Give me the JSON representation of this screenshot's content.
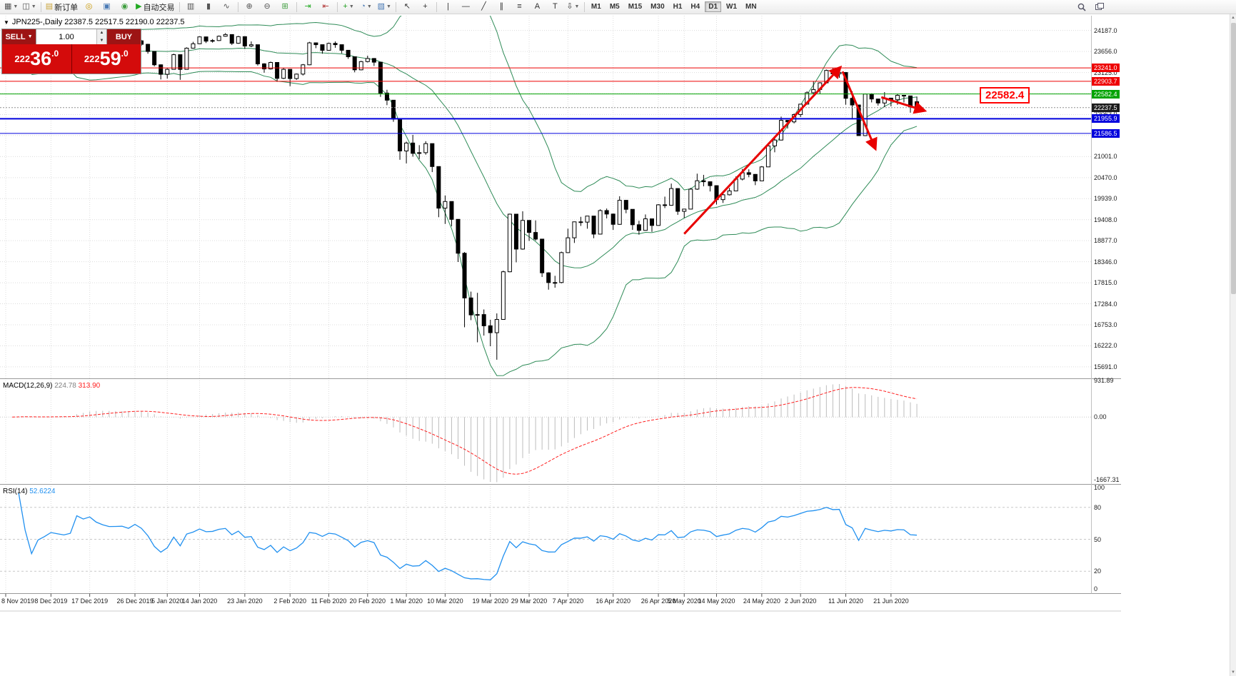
{
  "window": {
    "toolbar_bg": "#f0f0f0",
    "chart_bg": "#ffffff"
  },
  "toolbar": {
    "items": [
      {
        "name": "new-chart-button",
        "glyph": "▦",
        "color": "#555555",
        "dd": true
      },
      {
        "name": "profiles-button",
        "glyph": "◫",
        "color": "#555555",
        "dd": true
      },
      {
        "sep": true
      },
      {
        "name": "new-order-button",
        "glyph": "▤",
        "color": "#caa53d",
        "label": "新订单"
      },
      {
        "name": "market-watch-button",
        "glyph": "◎",
        "color": "#c99700"
      },
      {
        "name": "navigator-button",
        "glyph": "▣",
        "color": "#4a7ab5"
      },
      {
        "name": "strategy-tester-button",
        "glyph": "◉",
        "color": "#3f9e3f"
      },
      {
        "name": "autotrading-button",
        "glyph": "▶",
        "color": "#22aa22",
        "label": "自动交易"
      },
      {
        "sep": true
      },
      {
        "name": "bar-chart-button",
        "glyph": "▥",
        "color": "#555555"
      },
      {
        "name": "candlestick-chart-button",
        "glyph": "▮",
        "color": "#555555"
      },
      {
        "name": "line-chart-button",
        "glyph": "∿",
        "color": "#555555"
      },
      {
        "sep": true
      },
      {
        "name": "zoom-in-button",
        "glyph": "⊕",
        "color": "#555555"
      },
      {
        "name": "zoom-out-button",
        "glyph": "⊖",
        "color": "#555555"
      },
      {
        "name": "tile-windows-button",
        "glyph": "⊞",
        "color": "#3f9e3f"
      },
      {
        "sep": true
      },
      {
        "name": "auto-scroll-button",
        "glyph": "⇥",
        "color": "#22aa22"
      },
      {
        "name": "chart-shift-button",
        "glyph": "⇤",
        "color": "#b03030"
      },
      {
        "sep": true
      },
      {
        "name": "indicators-button",
        "glyph": "+",
        "color": "#1f9e1f",
        "dd": true
      },
      {
        "name": "periods-button",
        "glyph": "◔",
        "color": "#4a7ab5",
        "dd": true
      },
      {
        "name": "templates-button",
        "glyph": "▧",
        "color": "#4a7ab5",
        "dd": true
      },
      {
        "sep": true
      },
      {
        "name": "cursor-button",
        "glyph": "↖",
        "color": "#333333"
      },
      {
        "name": "crosshair-button",
        "glyph": "+",
        "color": "#333333"
      },
      {
        "sep": true
      },
      {
        "name": "vertical-line-button",
        "glyph": "|",
        "color": "#333333"
      },
      {
        "name": "horizontal-line-button",
        "glyph": "—",
        "color": "#333333"
      },
      {
        "name": "trendline-button",
        "glyph": "╱",
        "color": "#333333"
      },
      {
        "name": "equidistant-channel-button",
        "glyph": "∥",
        "color": "#333333"
      },
      {
        "name": "fibonacci-button",
        "glyph": "≡",
        "color": "#333333"
      },
      {
        "name": "text-button",
        "glyph": "A",
        "color": "#333333"
      },
      {
        "name": "text-label-button",
        "glyph": "T",
        "color": "#333333"
      },
      {
        "name": "arrows-button",
        "glyph": "⇩",
        "color": "#333333",
        "dd": true
      },
      {
        "sep": true
      }
    ],
    "timeframes": [
      "M1",
      "M5",
      "M15",
      "M30",
      "H1",
      "H4",
      "D1",
      "W1",
      "MN"
    ],
    "active_timeframe": "D1",
    "right_items": [
      {
        "name": "search-button",
        "icon": "search"
      },
      {
        "name": "new-window-button",
        "icon": "windows"
      }
    ]
  },
  "chart": {
    "title_line": "JPN225-,Daily 22387.5 22517.5 22190.0 22237.5",
    "symbol": "JPN225-",
    "period": "Daily"
  },
  "trade_panel": {
    "sell_label": "SELL",
    "buy_label": "BUY",
    "volume": "1.00",
    "sell_price": {
      "full": "22236.0",
      "head": "222",
      "big": "36",
      "sup": ".0"
    },
    "buy_price": {
      "full": "22259.0",
      "head": "222",
      "big": "59",
      "sup": ".0"
    },
    "header_bg": "#9d1414",
    "price_bg": "#d40b0b"
  },
  "chart_data": {
    "type": "candlestick",
    "symbol": "JPN225-",
    "period": "Daily",
    "ohlc_line": {
      "open": "22387.5",
      "high": "22517.5",
      "low": "22190.0",
      "close": "22237.5"
    },
    "price_axis": {
      "min": 15400,
      "max": 24560,
      "tick_values": [
        24187,
        23656,
        23125,
        22594,
        22063,
        21532,
        21001,
        20470,
        19939,
        19408,
        18877,
        18346,
        17815,
        17284,
        16753,
        16222,
        15691
      ],
      "tick_labels": [
        "24187.0",
        "23656.0",
        "23125.0",
        "22594.0",
        "22063.0",
        "21532.0",
        "21001.0",
        "20470.0",
        "19939.0",
        "19408.0",
        "18877.0",
        "18346.0",
        "17815.0",
        "17284.0",
        "16753.0",
        "16222.0",
        "15691.0"
      ]
    },
    "date_ticks": [
      [
        0,
        "8 Nov 2019"
      ],
      [
        7,
        "8 Dec 2019"
      ],
      [
        13,
        "17 Dec 2019"
      ],
      [
        20,
        "26 Dec 2019"
      ],
      [
        25,
        "5 Jan 2020"
      ],
      [
        30,
        "14 Jan 2020"
      ],
      [
        37,
        "23 Jan 2020"
      ],
      [
        44,
        "2 Feb 2020"
      ],
      [
        50,
        "11 Feb 2020"
      ],
      [
        56,
        "20 Feb 2020"
      ],
      [
        62,
        "1 Mar 2020"
      ],
      [
        68,
        "10 Mar 2020"
      ],
      [
        75,
        "19 Mar 2020"
      ],
      [
        81,
        "29 Mar 2020"
      ],
      [
        87,
        "7 Apr 2020"
      ],
      [
        94,
        "16 Apr 2020"
      ],
      [
        101,
        "26 Apr 2020"
      ],
      [
        105,
        "5 May 2020"
      ],
      [
        110,
        "14 May 2020"
      ],
      [
        117,
        "24 May 2020"
      ],
      [
        123,
        "2 Jun 2020"
      ],
      [
        130,
        "11 Jun 2020"
      ],
      [
        137,
        "21 Jun 2020"
      ]
    ],
    "candles": [
      [
        23290,
        23370,
        23240,
        23310
      ],
      [
        23310,
        23360,
        23250,
        23294
      ],
      [
        23294,
        23560,
        23285,
        23530
      ],
      [
        23530,
        23540,
        23330,
        23380
      ],
      [
        23380,
        23390,
        23100,
        23135
      ],
      [
        23135,
        23330,
        23120,
        23300
      ],
      [
        23300,
        23390,
        23270,
        23354
      ],
      [
        23354,
        23460,
        23340,
        23430
      ],
      [
        23430,
        23450,
        23360,
        23410
      ],
      [
        23410,
        23440,
        23350,
        23391
      ],
      [
        23391,
        23480,
        23370,
        23424
      ],
      [
        23424,
        24050,
        23420,
        24023
      ],
      [
        24023,
        24040,
        23900,
        23952
      ],
      [
        23952,
        24091,
        23930,
        24066
      ],
      [
        24066,
        24070,
        23900,
        23934
      ],
      [
        23934,
        23950,
        23820,
        23864
      ],
      [
        23864,
        23920,
        23780,
        23817
      ],
      [
        23817,
        23860,
        23780,
        23821
      ],
      [
        23821,
        23870,
        23800,
        23830
      ],
      [
        23830,
        23840,
        23750,
        23783
      ],
      [
        23783,
        23940,
        23770,
        23925
      ],
      [
        23925,
        23950,
        23800,
        23838
      ],
      [
        23838,
        23850,
        23600,
        23657
      ],
      [
        23657,
        23660,
        23280,
        23320
      ],
      [
        23320,
        23330,
        22950,
        23080
      ],
      [
        23080,
        23230,
        22970,
        23205
      ],
      [
        23205,
        23600,
        23200,
        23576
      ],
      [
        23576,
        23580,
        22940,
        23204
      ],
      [
        23204,
        23760,
        23200,
        23740
      ],
      [
        23740,
        23900,
        23730,
        23851
      ],
      [
        23851,
        24040,
        23840,
        24025
      ],
      [
        24025,
        24030,
        23870,
        23917
      ],
      [
        23917,
        23970,
        23880,
        23933
      ],
      [
        23933,
        24060,
        23920,
        24041
      ],
      [
        24041,
        24120,
        24030,
        24084
      ],
      [
        24084,
        24090,
        23820,
        23864
      ],
      [
        23864,
        24050,
        23850,
        24031
      ],
      [
        24031,
        24040,
        23720,
        23795
      ],
      [
        23795,
        23910,
        23770,
        23827
      ],
      [
        23827,
        23830,
        23300,
        23344
      ],
      [
        23344,
        23360,
        23120,
        23216
      ],
      [
        23216,
        23400,
        23200,
        23379
      ],
      [
        23379,
        23380,
        22890,
        22978
      ],
      [
        22978,
        23240,
        22960,
        23205
      ],
      [
        23205,
        23210,
        22780,
        22972
      ],
      [
        22972,
        23100,
        22940,
        23085
      ],
      [
        23085,
        23340,
        23050,
        23320
      ],
      [
        23320,
        23900,
        23310,
        23874
      ],
      [
        23874,
        23880,
        23740,
        23828
      ],
      [
        23828,
        23830,
        23600,
        23686
      ],
      [
        23686,
        23880,
        23680,
        23861
      ],
      [
        23861,
        23910,
        23750,
        23828
      ],
      [
        23828,
        23830,
        23610,
        23687
      ],
      [
        23687,
        23690,
        23470,
        23523
      ],
      [
        23523,
        23530,
        23130,
        23193
      ],
      [
        23193,
        23420,
        23180,
        23401
      ],
      [
        23401,
        23550,
        23380,
        23479
      ],
      [
        23479,
        23490,
        23290,
        23386
      ],
      [
        23386,
        23390,
        22510,
        22605
      ],
      [
        22605,
        22690,
        22300,
        22426
      ],
      [
        22426,
        22430,
        21880,
        21948
      ],
      [
        21948,
        21950,
        20920,
        21143
      ],
      [
        21143,
        21380,
        20830,
        21344
      ],
      [
        21344,
        21550,
        21000,
        21083
      ],
      [
        21083,
        21290,
        20940,
        21100
      ],
      [
        21100,
        21390,
        21050,
        21329
      ],
      [
        21329,
        21330,
        20610,
        20750
      ],
      [
        20750,
        20750,
        19470,
        19699
      ],
      [
        19699,
        20020,
        19300,
        19867
      ],
      [
        19867,
        19870,
        19240,
        19416
      ],
      [
        19416,
        19420,
        18340,
        18560
      ],
      [
        18560,
        18590,
        16690,
        17431
      ],
      [
        17431,
        17590,
        16870,
        17002
      ],
      [
        17002,
        17560,
        16310,
        17011
      ],
      [
        17011,
        17140,
        16480,
        16727
      ],
      [
        16727,
        16880,
        16210,
        16553
      ],
      [
        16553,
        17040,
        15870,
        16888
      ],
      [
        16888,
        18120,
        16880,
        18092
      ],
      [
        18092,
        19560,
        18080,
        19547
      ],
      [
        19547,
        19550,
        18330,
        18665
      ],
      [
        18665,
        19620,
        18650,
        19389
      ],
      [
        19389,
        19390,
        18870,
        19085
      ],
      [
        19085,
        19390,
        18880,
        18917
      ],
      [
        18917,
        18920,
        17960,
        18065
      ],
      [
        18065,
        18080,
        17640,
        17819
      ],
      [
        17819,
        17990,
        17690,
        17820
      ],
      [
        17820,
        18600,
        17800,
        18576
      ],
      [
        18576,
        19180,
        18570,
        18950
      ],
      [
        18950,
        19360,
        18820,
        19353
      ],
      [
        19353,
        19480,
        19250,
        19346
      ],
      [
        19346,
        19500,
        19180,
        19499
      ],
      [
        19499,
        19500,
        18940,
        19043
      ],
      [
        19043,
        19670,
        19040,
        19638
      ],
      [
        19638,
        19690,
        19440,
        19550
      ],
      [
        19550,
        19560,
        19150,
        19290
      ],
      [
        19290,
        20000,
        19280,
        19897
      ],
      [
        19897,
        19900,
        19570,
        19669
      ],
      [
        19669,
        19670,
        19150,
        19280
      ],
      [
        19280,
        19380,
        19030,
        19137
      ],
      [
        19137,
        19540,
        19130,
        19429
      ],
      [
        19429,
        19430,
        19100,
        19262
      ],
      [
        19262,
        19800,
        19260,
        19783
      ],
      [
        19783,
        19990,
        19700,
        19771
      ],
      [
        19771,
        20320,
        19760,
        20194
      ],
      [
        20194,
        20200,
        19530,
        19619
      ],
      [
        19619,
        19680,
        19450,
        19675
      ],
      [
        19675,
        20210,
        19670,
        20179
      ],
      [
        20179,
        20570,
        20160,
        20391
      ],
      [
        20391,
        20540,
        20250,
        20366
      ],
      [
        20366,
        20370,
        20120,
        20267
      ],
      [
        20267,
        20270,
        19790,
        19914
      ],
      [
        19914,
        20100,
        19830,
        20037
      ],
      [
        20037,
        20210,
        20020,
        20134
      ],
      [
        20134,
        20500,
        20130,
        20433
      ],
      [
        20433,
        20690,
        20400,
        20595
      ],
      [
        20595,
        20680,
        20480,
        20552
      ],
      [
        20552,
        20560,
        20280,
        20388
      ],
      [
        20388,
        20760,
        20380,
        20741
      ],
      [
        20741,
        21310,
        20740,
        21271
      ],
      [
        21271,
        21490,
        21110,
        21419
      ],
      [
        21419,
        22010,
        21410,
        21916
      ],
      [
        21916,
        21920,
        21710,
        21878
      ],
      [
        21878,
        22090,
        21840,
        22062
      ],
      [
        22062,
        22330,
        22000,
        22326
      ],
      [
        22326,
        22650,
        22320,
        22614
      ],
      [
        22614,
        22910,
        22580,
        22696
      ],
      [
        22696,
        22880,
        22590,
        22864
      ],
      [
        22864,
        23200,
        22860,
        23178
      ],
      [
        23178,
        23240,
        23030,
        23091
      ],
      [
        23091,
        23190,
        22990,
        23125
      ],
      [
        23125,
        23130,
        22310,
        22473
      ],
      [
        22473,
        22650,
        21940,
        22305
      ],
      [
        22305,
        22310,
        21530,
        21531
      ],
      [
        21531,
        22590,
        21520,
        22582
      ],
      [
        22582,
        22600,
        22370,
        22456
      ],
      [
        22456,
        22460,
        22290,
        22355
      ],
      [
        22355,
        22630,
        22250,
        22478
      ],
      [
        22478,
        22480,
        22270,
        22437
      ],
      [
        22437,
        22580,
        22310,
        22549
      ],
      [
        22549,
        22560,
        22370,
        22534
      ],
      [
        22534,
        22540,
        22110,
        22260
      ],
      [
        22387.5,
        22517.5,
        22190,
        22237.5
      ]
    ],
    "candle_colors": {
      "up_fill": "#ffffff",
      "down_fill": "#000000",
      "outline": "#000000"
    },
    "overlays": {
      "bollinger": {
        "period": 20,
        "deviation": 2,
        "color": "#2e8b57"
      }
    },
    "levels": [
      {
        "price": 23241.0,
        "label": "23241.0",
        "color": "#ee0000",
        "style": "solid",
        "width": 1
      },
      {
        "price": 22903.7,
        "label": "22903.7",
        "color": "#ee0000",
        "style": "solid",
        "width": 1
      },
      {
        "price": 22582.4,
        "label": "22582.4",
        "color": "#00a300",
        "style": "solid",
        "width": 1
      },
      {
        "price": 22237.5,
        "label": "22237.5",
        "color": "#1c1c1c",
        "style": "dashed",
        "width": 1
      },
      {
        "price": 21955.9,
        "label": "21955.9",
        "color": "#0000dd",
        "style": "solid",
        "width": 2
      },
      {
        "price": 21586.5,
        "label": "21586.5",
        "color": "#0000dd",
        "style": "solid",
        "width": 1
      }
    ],
    "annotations": {
      "arrow_color": "#e80000",
      "arrows": [
        {
          "from": [
            105,
            19050
          ],
          "to": [
            129,
            23230
          ]
        },
        {
          "from": [
            129.5,
            23150
          ],
          "to": [
            134.5,
            21230
          ]
        },
        {
          "from": [
            135.5,
            22500
          ],
          "to": [
            142,
            22170
          ]
        }
      ],
      "callout": {
        "text": "22582.4"
      }
    },
    "indicators": {
      "macd": {
        "label_name": "MACD(12,26,9)",
        "value_main": "224.78",
        "value_signal": "313.90",
        "scale_top": "931.89",
        "scale_zero": "0.00",
        "scale_bottom": "-1667.31",
        "range": [
          -1667.31,
          931.89
        ],
        "histogram_color": "#bdbdbd",
        "signal_color": "#ff2020"
      },
      "rsi": {
        "label_name": "RSI(14)",
        "value": "52.6224",
        "color": "#2090f0",
        "levels": [
          80,
          50,
          20
        ],
        "scale_labels": [
          "100",
          "80",
          "50",
          "20",
          "0"
        ],
        "range": [
          0,
          100
        ]
      }
    }
  }
}
